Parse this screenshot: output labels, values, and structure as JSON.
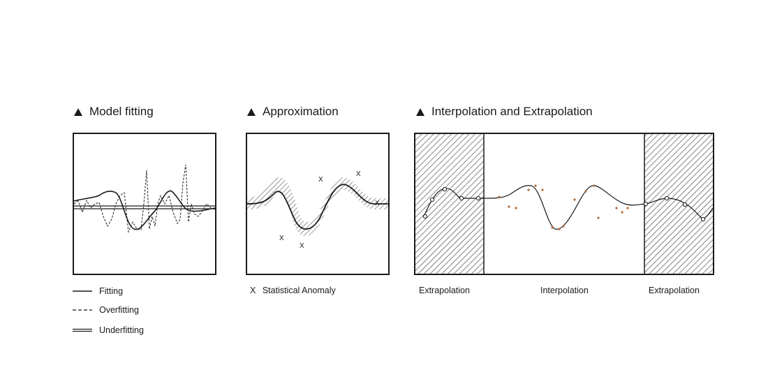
{
  "panels": {
    "model_fitting": {
      "title": "Model fitting",
      "legend": [
        {
          "label": "Fitting",
          "style": "solid"
        },
        {
          "label": "Overfitting",
          "style": "dashed"
        },
        {
          "label": "Underfitting",
          "style": "double"
        }
      ]
    },
    "approximation": {
      "title": "Approximation",
      "marker": "X",
      "legend_label": "Statistical Anomaly"
    },
    "interpolation": {
      "title": "Interpolation and Extrapolation",
      "regions": {
        "left": "Extrapolation",
        "middle": "Interpolation",
        "right": "Extrapolation"
      }
    }
  },
  "colors": {
    "ink": "#1a1a1a",
    "hatch": "#555555",
    "sample_point": "#b06a3a"
  }
}
